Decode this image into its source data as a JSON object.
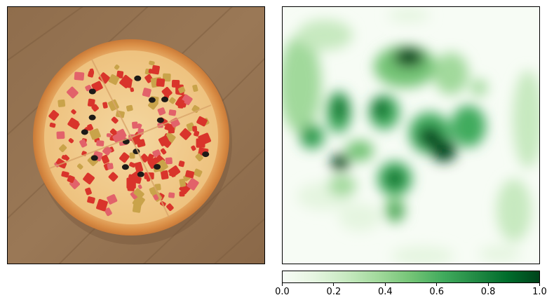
{
  "image_panel": {
    "subject": "pizza on wooden table"
  },
  "heatmap_panel": {
    "colormap": "Greens"
  },
  "colorbar": {
    "ticks": [
      "0.0",
      "0.2",
      "0.4",
      "0.6",
      "0.8",
      "1.0"
    ],
    "range": [
      0.0,
      1.0
    ],
    "color_low": "#f7fcf5",
    "color_high": "#00441b"
  }
}
